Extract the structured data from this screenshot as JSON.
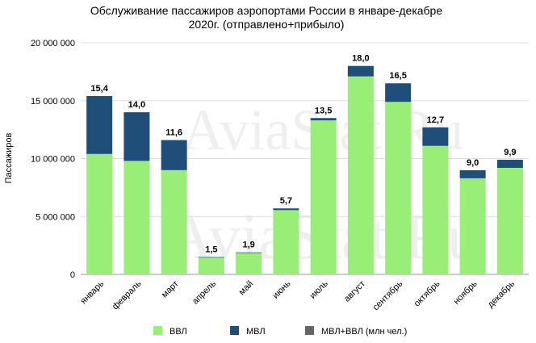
{
  "chart_data": {
    "type": "stacked_bar",
    "title": [
      "Обслуживание пассажиров аэропортами России в январе-декабре",
      "2020г. (отправлено+прибыло)"
    ],
    "watermark": "AviaStat.Ru",
    "y_label": "Пассажиров",
    "categories": [
      "январь",
      "февраль",
      "март",
      "апрель",
      "май",
      "июнь",
      "июль",
      "август",
      "сентябрь",
      "октябрь",
      "ноябрь",
      "декабрь"
    ],
    "series": [
      {
        "name": "ВВЛ",
        "color": "#99ee77",
        "values": [
          10400000,
          9800000,
          9000000,
          1450000,
          1850000,
          5550000,
          13300000,
          17100000,
          14900000,
          11100000,
          8300000,
          9200000
        ]
      },
      {
        "name": "МВЛ",
        "color": "#1f4e79",
        "values": [
          5000000,
          4200000,
          2600000,
          50000,
          50000,
          150000,
          200000,
          900000,
          1600000,
          1600000,
          700000,
          700000
        ]
      }
    ],
    "totals": {
      "name": "МВЛ+ВВЛ (млн чел.)",
      "color": "#666666",
      "values": [
        15400000,
        14000000,
        11600000,
        1500000,
        1900000,
        5700000,
        13500000,
        18000000,
        16500000,
        12700000,
        9000000,
        9900000
      ],
      "value_labels": [
        "15,4",
        "14,0",
        "11,6",
        "1,5",
        "1,9",
        "5,7",
        "13,5",
        "18,0",
        "16,5",
        "12,7",
        "9,0",
        "9,9"
      ]
    },
    "ylim": [
      0,
      20000000
    ],
    "yticks": [
      {
        "value": 0,
        "label": "0"
      },
      {
        "value": 5000000,
        "label": "5 000 000"
      },
      {
        "value": 10000000,
        "label": "10 000 000"
      },
      {
        "value": 15000000,
        "label": "15 000 000"
      },
      {
        "value": 20000000,
        "label": "20 000 000"
      }
    ],
    "grid": true
  }
}
